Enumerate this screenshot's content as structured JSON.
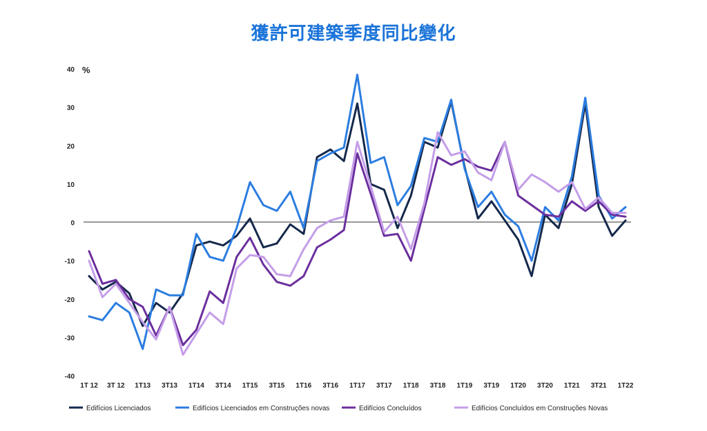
{
  "chart_data": {
    "type": "line",
    "title": "獲許可建築季度同比變化",
    "ylabel": "%",
    "ylim": [
      -40,
      40
    ],
    "yticks": [
      -40,
      -30,
      -20,
      -10,
      0,
      10,
      20,
      30,
      40
    ],
    "grid": false,
    "legend_position": "bottom",
    "x": [
      "1T 12",
      "2T 12",
      "3T 12",
      "4T 12",
      "1T13",
      "2T13",
      "3T13",
      "4T13",
      "1T14",
      "2T14",
      "3T14",
      "4T14",
      "1T15",
      "2T15",
      "3T15",
      "4T15",
      "1T16",
      "2T16",
      "3T16",
      "4T16",
      "1T17",
      "2T17",
      "3T17",
      "4T17",
      "1T18",
      "2T18",
      "3T18",
      "4T18",
      "1T19",
      "2T19",
      "3T19",
      "4T19",
      "1T20",
      "2T20",
      "3T20",
      "4T20",
      "1T21",
      "2T21",
      "3T21",
      "4T21",
      "1T22"
    ],
    "x_tick_labels": [
      "1T 12",
      "3T 12",
      "1T13",
      "3T13",
      "1T14",
      "3T14",
      "1T15",
      "3T15",
      "1T16",
      "3T16",
      "1T17",
      "3T17",
      "1T18",
      "3T18",
      "1T19",
      "3T19",
      "1T20",
      "3T20",
      "1T21",
      "3T21",
      "1T22"
    ],
    "series": [
      {
        "name": "Edifícios Licenciados",
        "color": "#14284b",
        "values": [
          -14,
          -17.5,
          -15.5,
          -18.5,
          -27,
          -21,
          -23.5,
          -18.5,
          -6,
          -5,
          -6,
          -3.5,
          1,
          -6.5,
          -5.5,
          -0.5,
          -3,
          17,
          19,
          16,
          31,
          10,
          8.5,
          -1.5,
          7,
          21,
          19.5,
          31.5,
          14.5,
          1,
          5.5,
          0.5,
          -4.5,
          -14,
          2,
          -1.5,
          10,
          31,
          4,
          -3.5,
          0.5
        ]
      },
      {
        "name": "Edifícios Licenciados em Construções novas",
        "color": "#2b7de0",
        "values": [
          -24.5,
          -25.5,
          -21,
          -23.5,
          -33,
          -17.5,
          -19,
          -19,
          -3,
          -9,
          -10,
          -1.5,
          10.5,
          4.5,
          3,
          8,
          -1.5,
          16,
          18,
          19.5,
          38.5,
          15.5,
          17,
          4.5,
          9.5,
          22,
          21,
          32,
          14,
          4,
          8,
          2,
          -1,
          -10,
          4,
          0.5,
          12,
          32.5,
          7,
          1,
          4
        ]
      },
      {
        "name": "Edifícios Concluídos",
        "color": "#6b2f9e",
        "values": [
          -7.5,
          -16,
          -15,
          -20,
          -22,
          -29.5,
          -22,
          -32,
          -28,
          -18,
          -21,
          -9,
          -4,
          -11,
          -15.5,
          -16.5,
          -14,
          -6.5,
          -4.5,
          -2,
          18,
          7.5,
          -3.5,
          -3,
          -10,
          3.5,
          17,
          15,
          16.5,
          14.5,
          13.5,
          21,
          7,
          4.5,
          2,
          1.5,
          5.5,
          3,
          5.5,
          2,
          1.5
        ]
      },
      {
        "name": "Edifícios Concluídos em Construções Novas",
        "color": "#c49de8",
        "values": [
          -10,
          -19.5,
          -16,
          -21,
          -26,
          -30.5,
          -22,
          -34.5,
          -29,
          -23.5,
          -26.5,
          -12,
          -8.5,
          -9,
          -13.5,
          -14,
          -7,
          -1.5,
          0.5,
          1.5,
          21,
          9.5,
          -2.5,
          1.5,
          -7,
          5,
          23.5,
          17.5,
          18.5,
          13,
          11,
          21,
          8.5,
          12.5,
          10.5,
          8,
          10.5,
          3.5,
          6.5,
          2.5,
          2.5
        ]
      }
    ]
  }
}
